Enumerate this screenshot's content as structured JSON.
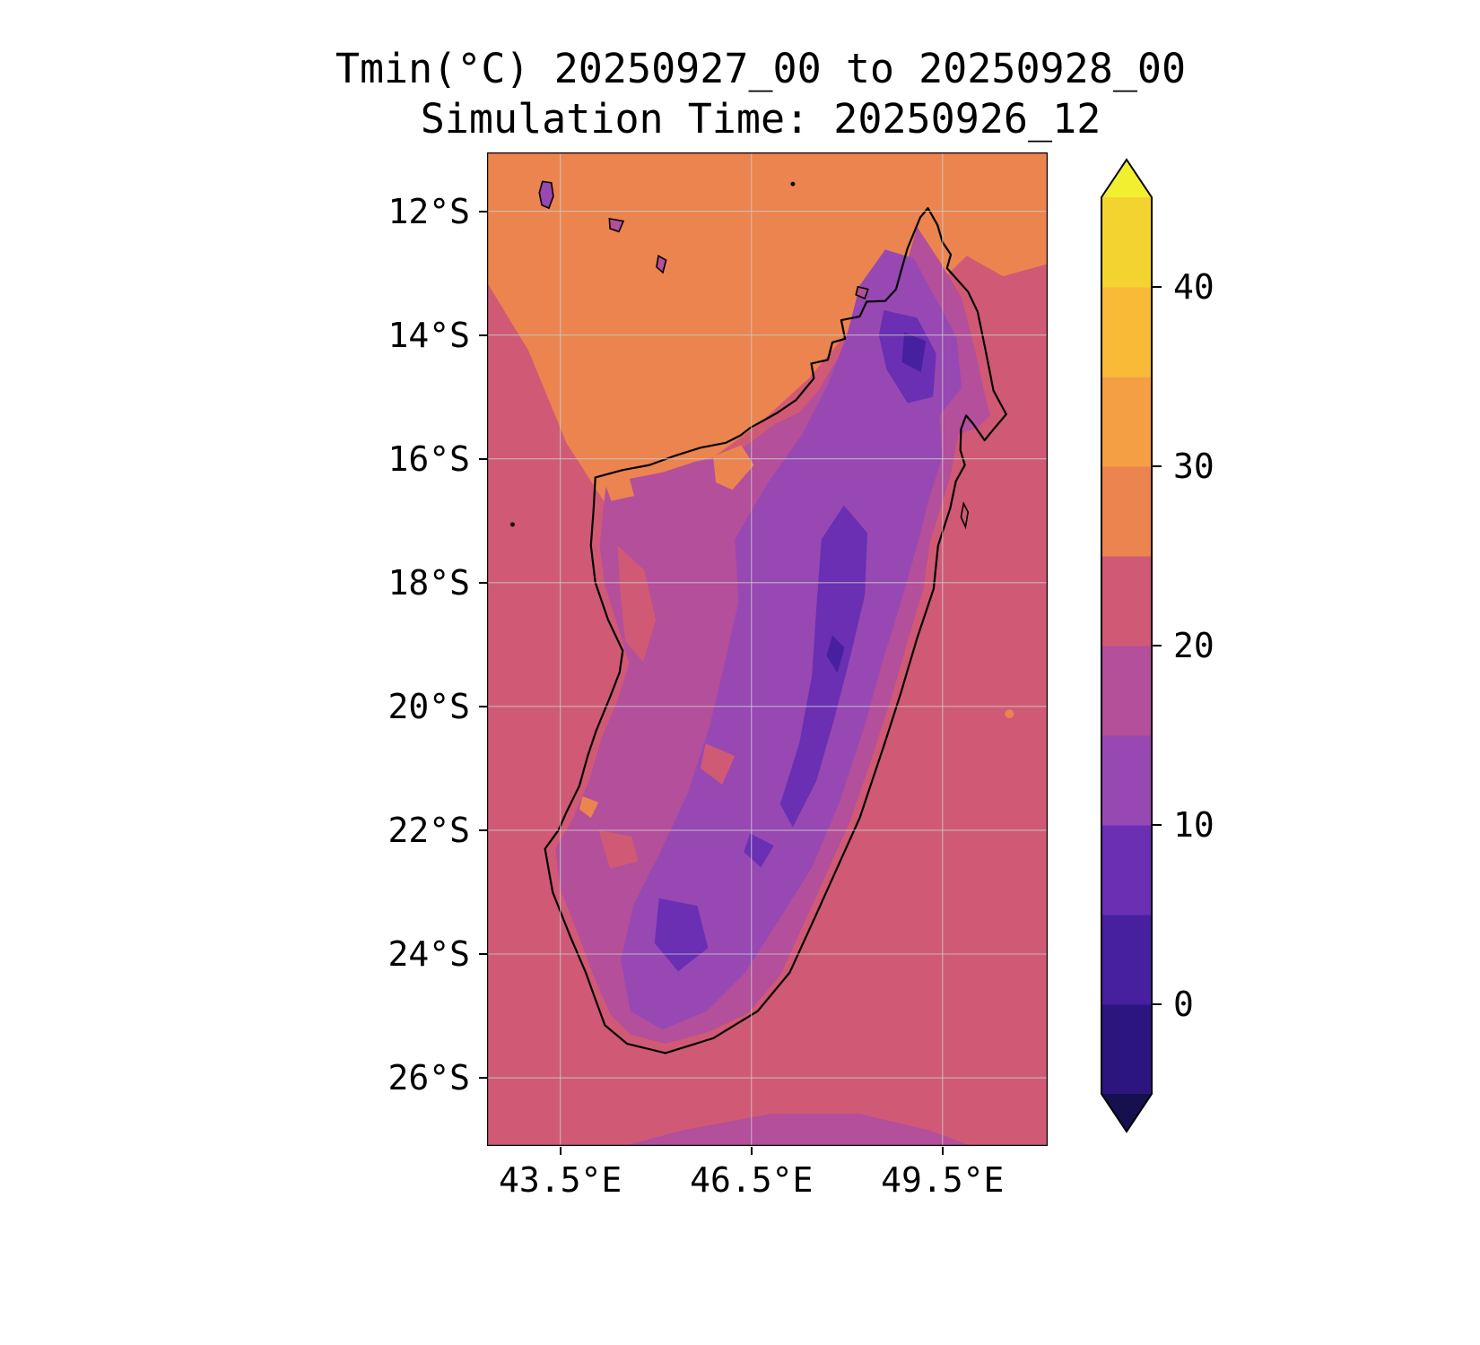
{
  "figure": {
    "title_line1": "Tmin(°C) 20250927_00 to 20250928_00",
    "title_line2": "Simulation Time: 20250926_12"
  },
  "chart_data": {
    "type": "heatmap",
    "subtype": "filled-contour-temperature-map",
    "region_depicted": "Madagascar, Comoros islands and surrounding ocean",
    "title": "Tmin(°C) 20250927_00 to 20250928_00",
    "subtitle": "Simulation Time: 20250926_12",
    "variable": "Tmin",
    "units": "°C",
    "lon_range": [
      42.35,
      51.15
    ],
    "lat_range": [
      11.05,
      27.1
    ],
    "grid": true,
    "x_ticks": [
      {
        "value": 43.5,
        "label": "43.5°E"
      },
      {
        "value": 46.5,
        "label": "46.5°E"
      },
      {
        "value": 49.5,
        "label": "49.5°E"
      }
    ],
    "y_ticks": [
      {
        "value": 12,
        "label": "12°S"
      },
      {
        "value": 14,
        "label": "14°S"
      },
      {
        "value": 16,
        "label": "16°S"
      },
      {
        "value": 18,
        "label": "18°S"
      },
      {
        "value": 20,
        "label": "20°S"
      },
      {
        "value": 22,
        "label": "22°S"
      },
      {
        "value": 24,
        "label": "24°S"
      },
      {
        "value": 26,
        "label": "26°S"
      }
    ],
    "colorbar": {
      "orientation": "vertical",
      "position": "right",
      "extend": "both",
      "levels": [
        -5,
        0,
        5,
        10,
        15,
        20,
        25,
        30,
        35,
        40,
        45
      ],
      "ticks": [
        0,
        10,
        20,
        30,
        40
      ],
      "band_colors": [
        "#2c157f",
        "#46209f",
        "#6a2fb3",
        "#9748b2",
        "#b34f9b",
        "#d05a75",
        "#ec8450",
        "#f49f44",
        "#f9ba38",
        "#f3d32f"
      ],
      "under_color": "#16104e",
      "over_color": "#f2ef30"
    },
    "field_summary": {
      "ocean_band_c": "20-25",
      "north_ocean_band_c": "25-30",
      "island_interior_band_c": "10-15",
      "eastern_highlands_band_c": "5-10",
      "coldest_spots_band_c": "0-5"
    }
  },
  "palette": {
    "under": "#16104e",
    "band_m5_0": "#2c157f",
    "band_0_5": "#46209f",
    "band_5_10": "#6a2fb3",
    "band_10_15": "#9748b2",
    "band_15_20": "#b34f9b",
    "band_20_25": "#d05a75",
    "band_25_30": "#ec8450",
    "band_30_35": "#f49f44",
    "band_35_40": "#f9ba38",
    "band_40_45": "#f3d32f",
    "over": "#f2ef30",
    "coastline": "#000000",
    "gridline": "#c9c9c9",
    "frame": "#000000",
    "background": "#ffffff"
  }
}
